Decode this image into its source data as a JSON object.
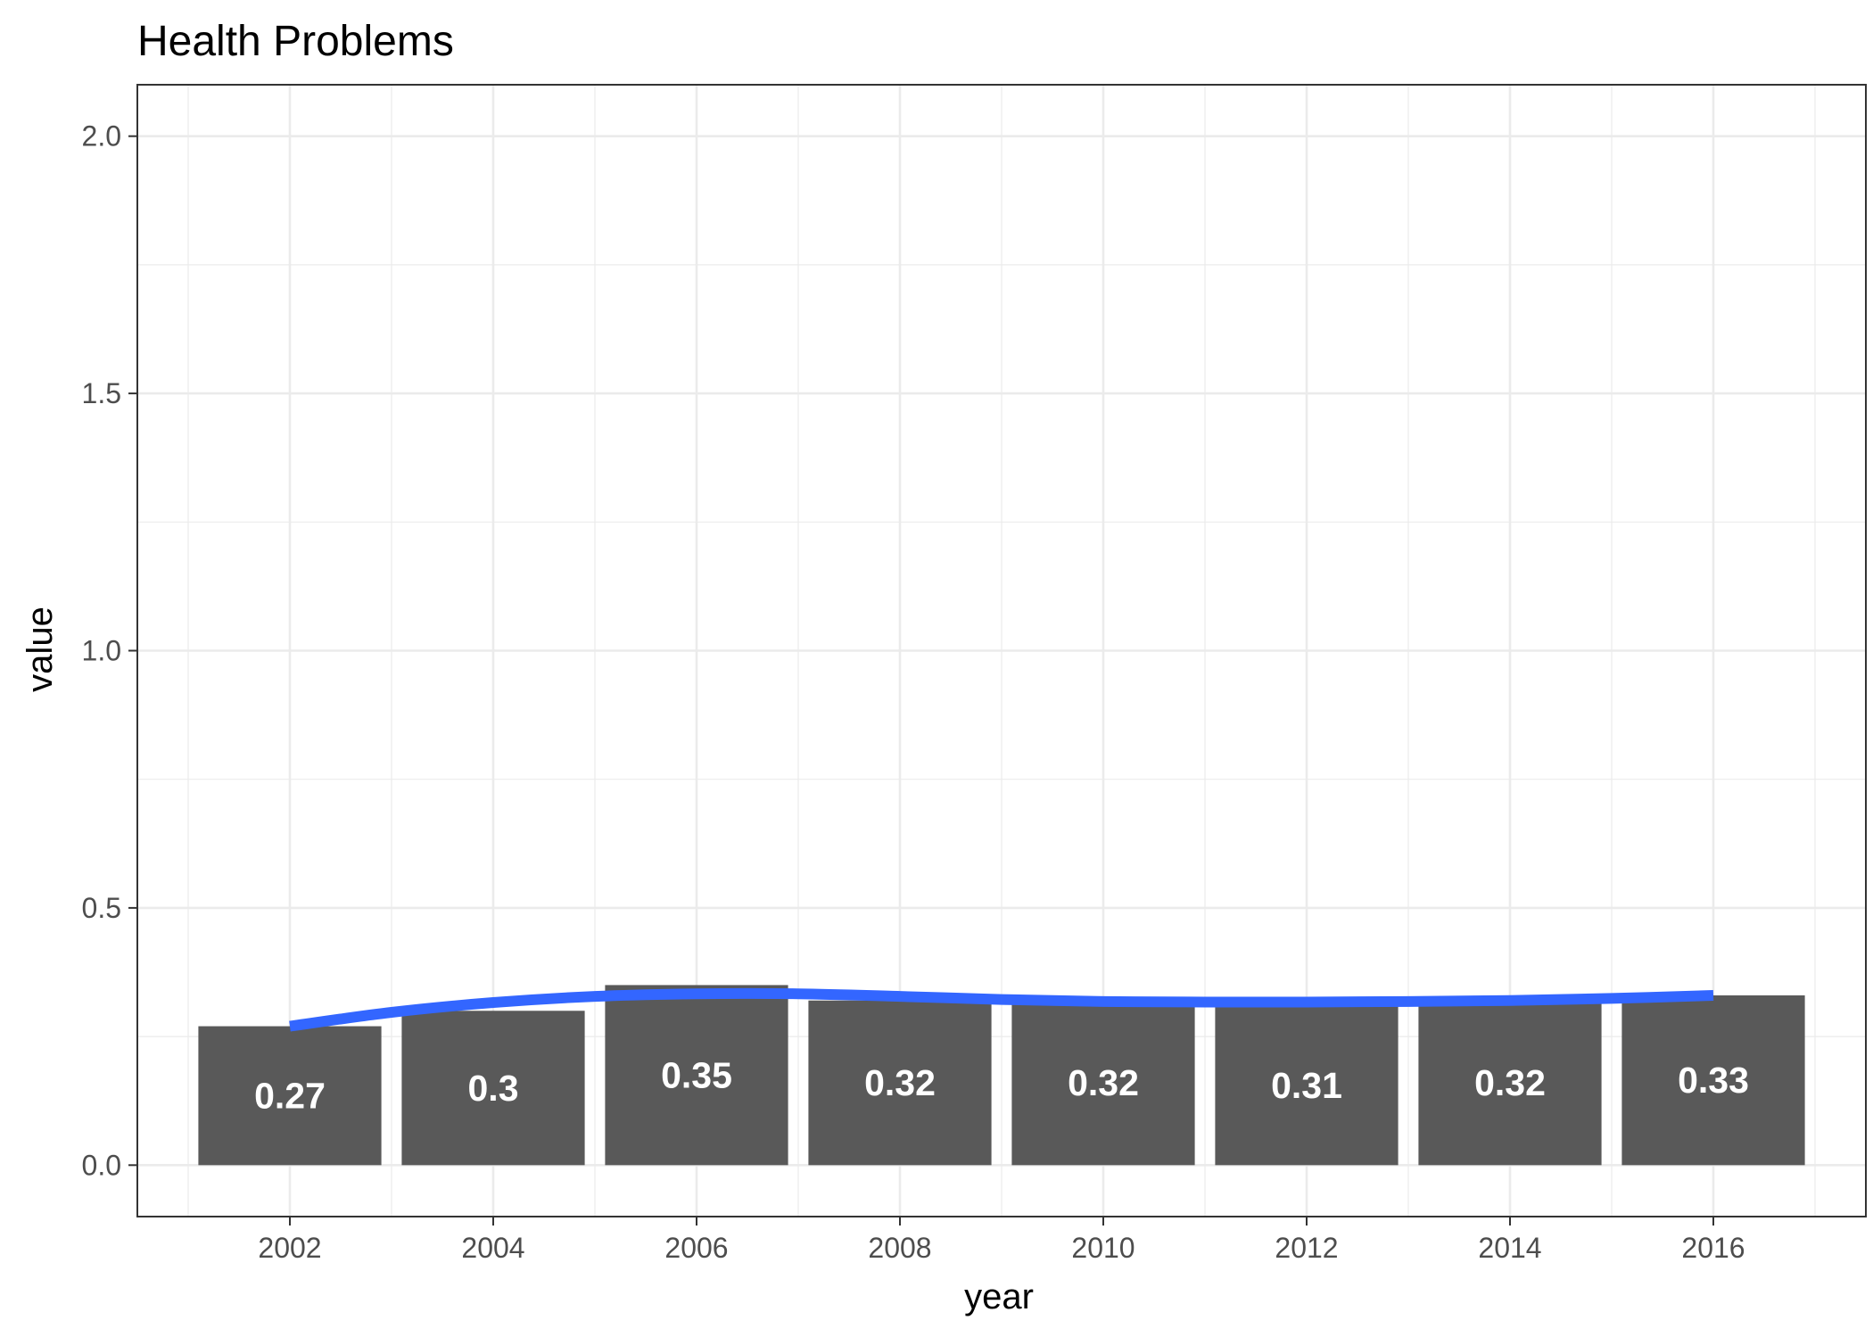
{
  "chart_data": {
    "type": "bar",
    "title": "Health Problems",
    "xlabel": "year",
    "ylabel": "value",
    "x": [
      2002,
      2004,
      2006,
      2008,
      2010,
      2012,
      2014,
      2016
    ],
    "values": [
      0.27,
      0.3,
      0.35,
      0.32,
      0.32,
      0.31,
      0.32,
      0.33
    ],
    "labels": [
      "0.27",
      "0.3",
      "0.35",
      "0.32",
      "0.32",
      "0.31",
      "0.32",
      "0.33"
    ],
    "smooth": {
      "x": [
        2002,
        2003,
        2004,
        2005,
        2006,
        2007,
        2008,
        2009,
        2010,
        2011,
        2012,
        2013,
        2014,
        2015,
        2016
      ],
      "y": [
        0.27,
        0.297,
        0.316,
        0.328,
        0.333,
        0.333,
        0.328,
        0.322,
        0.318,
        0.317,
        0.317,
        0.318,
        0.32,
        0.324,
        0.33
      ]
    },
    "xlim": [
      2000.5,
      2017.5
    ],
    "ylim": [
      -0.1,
      2.1
    ],
    "xticks": [
      "2002",
      "2004",
      "2006",
      "2008",
      "2010",
      "2012",
      "2014",
      "2016"
    ],
    "yticks": [
      "0.0",
      "0.5",
      "1.0",
      "1.5",
      "2.0"
    ],
    "grid": true,
    "colors": {
      "bar": "#595959",
      "smooth": "#3366ff",
      "grid": "#ebebeb",
      "panel_border": "#333333"
    }
  }
}
